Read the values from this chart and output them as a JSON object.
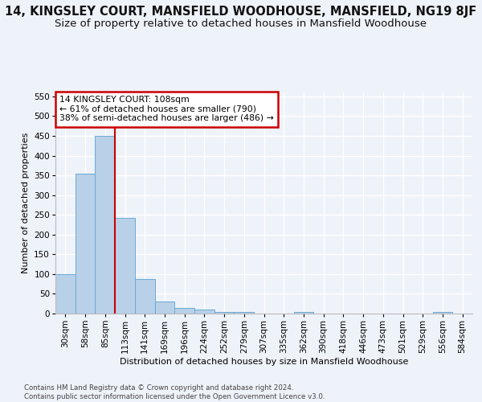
{
  "title1": "14, KINGSLEY COURT, MANSFIELD WOODHOUSE, MANSFIELD, NG19 8JF",
  "title2": "Size of property relative to detached houses in Mansfield Woodhouse",
  "xlabel": "Distribution of detached houses by size in Mansfield Woodhouse",
  "ylabel": "Number of detached properties",
  "categories": [
    "30sqm",
    "58sqm",
    "85sqm",
    "113sqm",
    "141sqm",
    "169sqm",
    "196sqm",
    "224sqm",
    "252sqm",
    "279sqm",
    "307sqm",
    "335sqm",
    "362sqm",
    "390sqm",
    "418sqm",
    "446sqm",
    "473sqm",
    "501sqm",
    "529sqm",
    "556sqm",
    "584sqm"
  ],
  "values": [
    100,
    355,
    450,
    243,
    88,
    30,
    15,
    10,
    5,
    5,
    0,
    0,
    5,
    0,
    0,
    0,
    0,
    0,
    0,
    5,
    0
  ],
  "bar_color": "#b8d0e8",
  "bar_edge_color": "#6aaad4",
  "property_line_x": 2.5,
  "property_line_color": "#cc0000",
  "annotation_line1": "14 KINGSLEY COURT: 108sqm",
  "annotation_line2": "← 61% of detached houses are smaller (790)",
  "annotation_line3": "38% of semi-detached houses are larger (486) →",
  "annotation_box_color": "#cc0000",
  "ylim": [
    0,
    560
  ],
  "yticks": [
    0,
    50,
    100,
    150,
    200,
    250,
    300,
    350,
    400,
    450,
    500,
    550
  ],
  "footnote": "Contains HM Land Registry data © Crown copyright and database right 2024.\nContains public sector information licensed under the Open Government Licence v3.0.",
  "bg_color": "#eef2f9",
  "title1_fontsize": 10.5,
  "title2_fontsize": 9.5,
  "axis_fontsize": 8,
  "tick_fontsize": 7.5
}
